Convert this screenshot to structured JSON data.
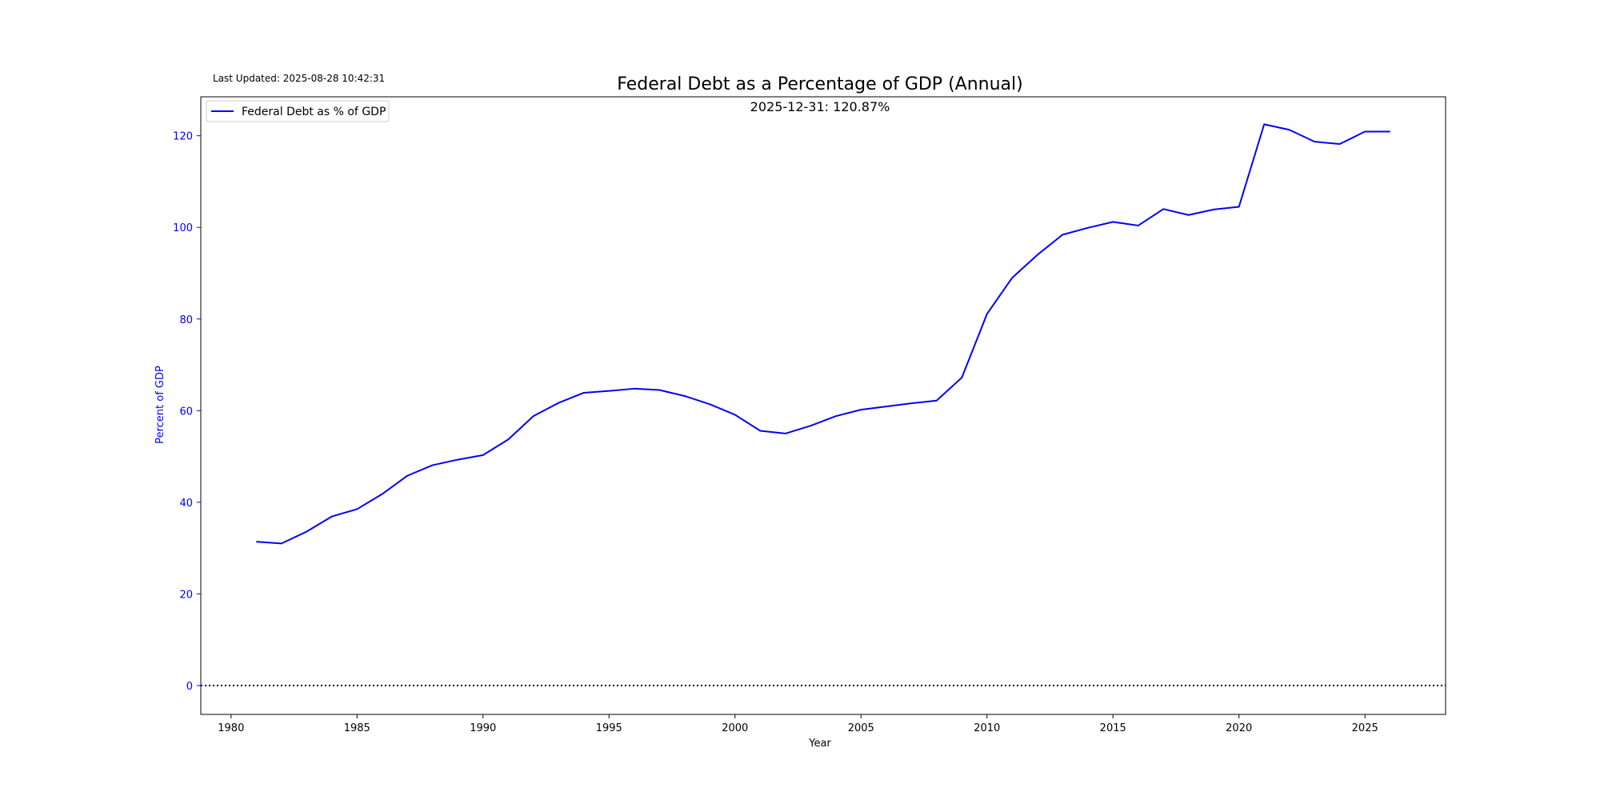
{
  "chart_data": {
    "type": "line",
    "title": "Federal Debt as a Percentage of GDP (Annual)",
    "subtitle": "2025-12-31: 120.87%",
    "last_updated": "Last Updated: 2025-08-28 10:42:31",
    "xlabel": "Year",
    "ylabel": "Percent of GDP",
    "xlim": [
      1978.8,
      2028.2
    ],
    "ylim": [
      -6.3,
      128.5
    ],
    "x_ticks": [
      1980,
      1985,
      1990,
      1995,
      2000,
      2005,
      2010,
      2015,
      2020,
      2025
    ],
    "y_ticks": [
      0,
      20,
      40,
      60,
      80,
      100,
      120
    ],
    "grid": false,
    "legend_position": "upper left",
    "reference_line": {
      "y": 0,
      "style": "dotted",
      "color": "#000000"
    },
    "colors": {
      "series": "#0000ff",
      "y_axis": "#0000ff",
      "x_axis": "#000000"
    },
    "series": [
      {
        "name": "Federal Debt as % of GDP",
        "x": [
          1981,
          1982,
          1983,
          1984,
          1985,
          1986,
          1987,
          1988,
          1989,
          1990,
          1991,
          1992,
          1993,
          1994,
          1995,
          1996,
          1997,
          1998,
          1999,
          2000,
          2001,
          2002,
          2003,
          2004,
          2005,
          2006,
          2007,
          2008,
          2009,
          2010,
          2011,
          2012,
          2013,
          2014,
          2015,
          2016,
          2017,
          2018,
          2019,
          2020,
          2021,
          2022,
          2023,
          2024,
          2025,
          2026
        ],
        "values": [
          31.4,
          31.0,
          33.6,
          36.9,
          38.5,
          41.8,
          45.8,
          48.1,
          49.3,
          50.3,
          53.7,
          58.8,
          61.7,
          63.9,
          64.3,
          64.8,
          64.5,
          63.2,
          61.4,
          59.1,
          55.6,
          55.0,
          56.7,
          58.8,
          60.2,
          60.9,
          61.6,
          62.2,
          67.2,
          81.1,
          89.0,
          94.0,
          98.4,
          99.9,
          101.2,
          100.4,
          104.0,
          102.7,
          103.9,
          104.5,
          122.5,
          121.3,
          118.7,
          118.2,
          120.9,
          120.9
        ]
      }
    ]
  }
}
